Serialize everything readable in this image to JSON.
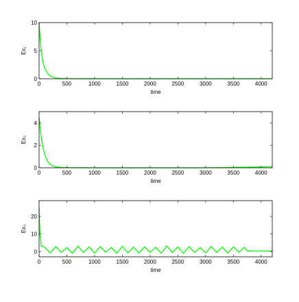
{
  "chart_data": [
    {
      "type": "line",
      "ylabel": "Ex₁",
      "xlabel": "time",
      "x": [
        0,
        20,
        40,
        60,
        80,
        100,
        150,
        200,
        250,
        300,
        400,
        600,
        1000,
        2000,
        3000,
        4200
      ],
      "values": [
        10,
        7,
        5,
        3.6,
        2.6,
        1.9,
        1,
        0.5,
        0.3,
        0.15,
        0.05,
        0.02,
        0,
        0,
        0,
        0
      ],
      "color": "#00ff00",
      "xlim": [
        0,
        4200
      ],
      "ylim": [
        0,
        10
      ],
      "xticks": [
        0,
        500,
        1000,
        1500,
        2000,
        2500,
        3000,
        3500,
        4000
      ],
      "yticks": [
        0,
        5,
        10
      ]
    },
    {
      "type": "line",
      "ylabel": "Ex₂",
      "xlabel": "time",
      "x": [
        0,
        20,
        40,
        60,
        80,
        100,
        150,
        200,
        250,
        300,
        400,
        600,
        1000,
        2000,
        3000,
        3700,
        4200
      ],
      "values": [
        4.5,
        3.5,
        2.7,
        2.1,
        1.6,
        1.2,
        0.6,
        0.3,
        0.15,
        0.08,
        0.03,
        0.01,
        0,
        0,
        0,
        0.05,
        0.1
      ],
      "color": "#00ff00",
      "xlim": [
        0,
        4200
      ],
      "ylim": [
        0,
        5
      ],
      "xticks": [
        0,
        500,
        1000,
        1500,
        2000,
        2500,
        3000,
        3500,
        4000
      ],
      "yticks": [
        0,
        2,
        4
      ]
    },
    {
      "type": "line",
      "ylabel": "Ex₃",
      "xlabel": "time",
      "x": [
        0,
        15,
        40,
        100,
        200,
        300,
        400,
        500,
        600,
        700,
        800,
        900,
        1000,
        1100,
        1200,
        1300,
        1400,
        1500,
        1600,
        1700,
        1800,
        1900,
        2000,
        2100,
        2200,
        2300,
        2400,
        2500,
        2600,
        2700,
        2800,
        2900,
        3000,
        3100,
        3200,
        3300,
        3400,
        3500,
        3600,
        3700,
        3750,
        4200
      ],
      "values": [
        25,
        10,
        3,
        2.5,
        -0.8,
        2.9,
        -0.5,
        2.2,
        -1,
        3.1,
        -0.6,
        2.6,
        -0.9,
        2.8,
        -0.4,
        2.3,
        -1,
        3,
        -0.7,
        2.5,
        -0.8,
        2.7,
        -0.5,
        2.4,
        -0.9,
        3.2,
        -0.6,
        2.6,
        -1,
        2.8,
        -0.5,
        2.2,
        -0.8,
        2.9,
        -0.6,
        2.5,
        -0.9,
        2.7,
        -0.4,
        2.4,
        0.3,
        0.3
      ],
      "color": "#00ff00",
      "xlim": [
        0,
        4200
      ],
      "ylim": [
        -3,
        29
      ],
      "xticks": [
        0,
        500,
        1000,
        1500,
        2000,
        2500,
        3000,
        3500,
        4000
      ],
      "yticks": [
        0,
        10,
        20
      ]
    }
  ]
}
